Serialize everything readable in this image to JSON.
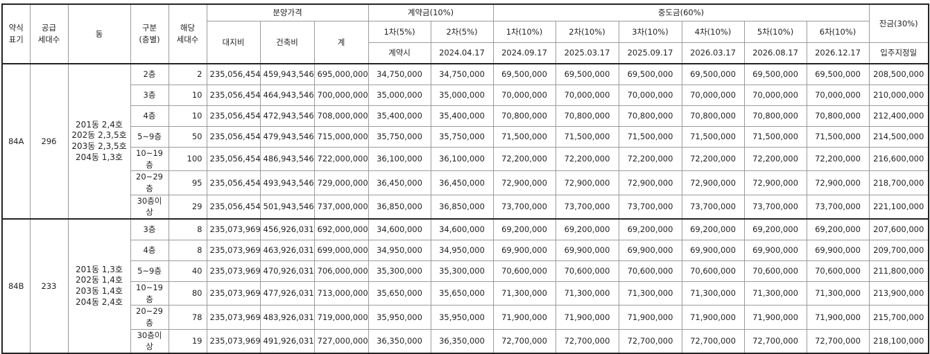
{
  "columns": {
    "abbr": "약식\n표기",
    "households": "공급\n세대수",
    "dong": "동",
    "floor": "구분\n(층별)",
    "units": "해당\n세대수",
    "price": "분양가격",
    "land": "대지비",
    "build": "건축비",
    "total": "계",
    "deposit": "계약금(10%)",
    "deposit_parts": [
      [
        "1차(5%)",
        "계약시"
      ],
      [
        "2차(5%)",
        "2024.04.17"
      ]
    ],
    "middle": "중도금(60%)",
    "middle_parts": [
      [
        "1차(10%)",
        "2024.09.17"
      ],
      [
        "2차(10%)",
        "2025.03.17"
      ],
      [
        "3차(10%)",
        "2025.09.17"
      ],
      [
        "4차(10%)",
        "2026.03.17"
      ],
      [
        "5차(10%)",
        "2026.08.17"
      ],
      [
        "6차(10%)",
        "2026.12.17"
      ]
    ],
    "balance": "잔금(30%)",
    "balance_date": "입주지정일"
  },
  "groups": [
    {
      "type": "84A",
      "households": 296,
      "dong": "201동 2,4호\n202동 2,3,5호\n203동 2,3,5호\n204동 1,3호",
      "rows": [
        [
          "2층",
          2,
          "235,056,454",
          "459,943,546",
          "695,000,000",
          "34,750,000",
          "34,750,000",
          "69,500,000",
          "69,500,000",
          "69,500,000",
          "69,500,000",
          "69,500,000",
          "69,500,000",
          "208,500,000"
        ],
        [
          "3층",
          10,
          "235,056,454",
          "464,943,546",
          "700,000,000",
          "35,000,000",
          "35,000,000",
          "70,000,000",
          "70,000,000",
          "70,000,000",
          "70,000,000",
          "70,000,000",
          "70,000,000",
          "210,000,000"
        ],
        [
          "4층",
          10,
          "235,056,454",
          "472,943,546",
          "708,000,000",
          "35,400,000",
          "35,400,000",
          "70,800,000",
          "70,800,000",
          "70,800,000",
          "70,800,000",
          "70,800,000",
          "70,800,000",
          "212,400,000"
        ],
        [
          "5~9층",
          50,
          "235,056,454",
          "479,943,546",
          "715,000,000",
          "35,750,000",
          "35,750,000",
          "71,500,000",
          "71,500,000",
          "71,500,000",
          "71,500,000",
          "71,500,000",
          "71,500,000",
          "214,500,000"
        ],
        [
          "10~19층",
          100,
          "235,056,454",
          "486,943,546",
          "722,000,000",
          "36,100,000",
          "36,100,000",
          "72,200,000",
          "72,200,000",
          "72,200,000",
          "72,200,000",
          "72,200,000",
          "72,200,000",
          "216,600,000"
        ],
        [
          "20~29층",
          95,
          "235,056,454",
          "493,943,546",
          "729,000,000",
          "36,450,000",
          "36,450,000",
          "72,900,000",
          "72,900,000",
          "72,900,000",
          "72,900,000",
          "72,900,000",
          "72,900,000",
          "218,700,000"
        ],
        [
          "30층이상",
          29,
          "235,056,454",
          "501,943,546",
          "737,000,000",
          "36,850,000",
          "36,850,000",
          "73,700,000",
          "73,700,000",
          "73,700,000",
          "73,700,000",
          "73,700,000",
          "73,700,000",
          "221,100,000"
        ]
      ]
    },
    {
      "type": "84B",
      "households": 233,
      "dong": "201동 1,3호\n202동 1,4호\n203동 1,4호\n204동 2,4호",
      "rows": [
        [
          "3층",
          8,
          "235,073,969",
          "456,926,031",
          "692,000,000",
          "34,600,000",
          "34,600,000",
          "69,200,000",
          "69,200,000",
          "69,200,000",
          "69,200,000",
          "69,200,000",
          "69,200,000",
          "207,600,000"
        ],
        [
          "4층",
          8,
          "235,073,969",
          "463,926,031",
          "699,000,000",
          "34,950,000",
          "34,950,000",
          "69,900,000",
          "69,900,000",
          "69,900,000",
          "69,900,000",
          "69,900,000",
          "69,900,000",
          "209,700,000"
        ],
        [
          "5~9층",
          40,
          "235,073,969",
          "470,926,031",
          "706,000,000",
          "35,300,000",
          "35,300,000",
          "70,600,000",
          "70,600,000",
          "70,600,000",
          "70,600,000",
          "70,600,000",
          "70,600,000",
          "211,800,000"
        ],
        [
          "10~19층",
          80,
          "235,073,969",
          "477,926,031",
          "713,000,000",
          "35,650,000",
          "35,650,000",
          "71,300,000",
          "71,300,000",
          "71,300,000",
          "71,300,000",
          "71,300,000",
          "71,300,000",
          "213,900,000"
        ],
        [
          "20~29층",
          78,
          "235,073,969",
          "483,926,031",
          "719,000,000",
          "35,950,000",
          "35,950,000",
          "71,900,000",
          "71,900,000",
          "71,900,000",
          "71,900,000",
          "71,900,000",
          "71,900,000",
          "215,700,000"
        ],
        [
          "30층이상",
          19,
          "235,073,969",
          "491,926,031",
          "727,000,000",
          "36,350,000",
          "36,350,000",
          "72,700,000",
          "72,700,000",
          "72,700,000",
          "72,700,000",
          "72,700,000",
          "72,700,000",
          "218,100,000"
        ]
      ]
    }
  ]
}
